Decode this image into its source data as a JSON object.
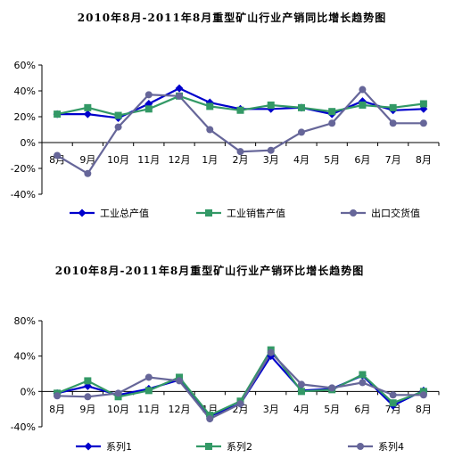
{
  "chart_data": [
    {
      "type": "line",
      "title": "2010年8月-2011年8月重型矿山行业产销同比增长趋势图",
      "categories": [
        "8月",
        "9月",
        "10月",
        "11月",
        "12月",
        "1月",
        "2月",
        "3月",
        "4月",
        "5月",
        "6月",
        "7月",
        "8月"
      ],
      "y_ticks": [
        "60%",
        "40%",
        "20%",
        "0%",
        "-20%",
        "-40%"
      ],
      "ylim": [
        -40,
        60
      ],
      "grid": false,
      "legend_position": "bottom",
      "series": [
        {
          "name": "工业总产值",
          "color": "#0000cc",
          "marker": "diamond",
          "values": [
            22,
            22,
            19,
            30,
            42,
            31,
            26,
            26,
            27,
            22,
            32,
            25,
            26
          ]
        },
        {
          "name": "工业销售产值",
          "color": "#339966",
          "marker": "square",
          "values": [
            22,
            27,
            21,
            26,
            36,
            28,
            25,
            29,
            27,
            24,
            29,
            27,
            30
          ]
        },
        {
          "name": "出口交货值",
          "color": "#666699",
          "marker": "circle",
          "values": [
            -10,
            -24,
            12,
            37,
            36,
            10,
            -7,
            -6,
            8,
            15,
            41,
            15,
            15
          ]
        }
      ]
    },
    {
      "type": "line",
      "title": "2010年8月-2011年8月重型矿山行业产销环比增长趋势图",
      "categories": [
        "8月",
        "9月",
        "10月",
        "11月",
        "12月",
        "1月",
        "2月",
        "3月",
        "4月",
        "5月",
        "6月",
        "7月",
        "8月"
      ],
      "y_ticks": [
        "80%",
        "40%",
        "0%",
        "-40%"
      ],
      "ylim": [
        -40,
        80
      ],
      "grid": false,
      "legend_position": "bottom",
      "series": [
        {
          "name": "系列1",
          "color": "#0000cc",
          "marker": "diamond",
          "values": [
            -2,
            6,
            -4,
            3,
            13,
            -28,
            -14,
            40,
            1,
            3,
            18,
            -16,
            1
          ]
        },
        {
          "name": "系列2",
          "color": "#339966",
          "marker": "square",
          "values": [
            -2,
            12,
            -6,
            1,
            16,
            -27,
            -11,
            47,
            0,
            2,
            19,
            -13,
            0
          ]
        },
        {
          "name": "系列4",
          "color": "#666699",
          "marker": "circle",
          "values": [
            -5,
            -6,
            -2,
            16,
            12,
            -31,
            -14,
            44,
            8,
            4,
            10,
            -4,
            -4
          ]
        }
      ]
    }
  ]
}
